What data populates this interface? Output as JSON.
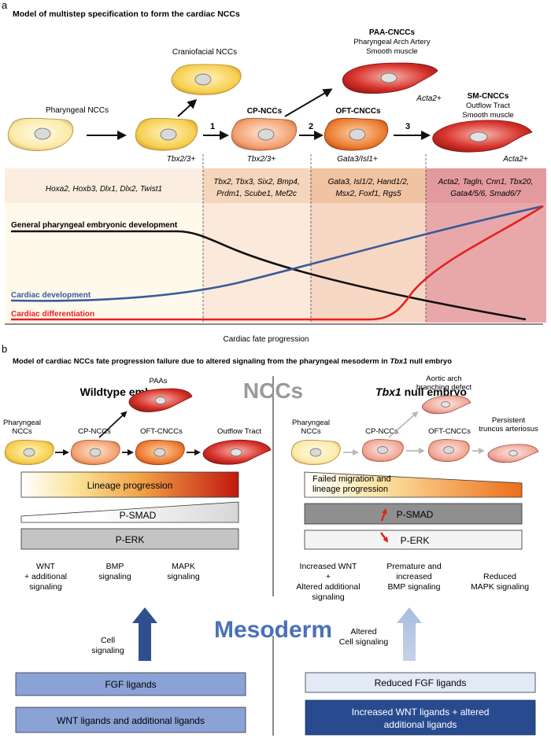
{
  "panel_a": {
    "letter": "a",
    "title": "Model of multistep specification to form the cardiac NCCs",
    "cells": {
      "pharyngeal": "Pharyngeal NCCs",
      "craniofacial": "Craniofacial NCCs",
      "cp": "CP-NCCs",
      "oft": "OFT-CNCCs",
      "paa_title": "PAA-CNCCs",
      "paa_sub1": "Pharyngeal Arch Artery",
      "paa_sub2": "Smooth muscle",
      "sm_title": "SM-CNCCs",
      "sm_sub1": "Outflow Tract",
      "sm_sub2": "Smooth muscle"
    },
    "markers": {
      "tbx_pharyngeal": "Tbx2/3+",
      "tbx_cp": "Tbx2/3+",
      "gata": "Gata3/Isl1+",
      "acta_paa": "Acta2+",
      "acta_sm": "Acta2+"
    },
    "steps": [
      "1",
      "2",
      "3"
    ],
    "genes": [
      [
        "Hoxa2, Hoxb3, Dlx1, Dlx2, Twist1"
      ],
      [
        "Tbx2, Tbx3, Six2, Bmp4,",
        "Prdm1, Scube1, Mef2c"
      ],
      [
        "Gata3, Isl1/2, Hand1/2,",
        "Msx2, Foxf1, Rgs5"
      ],
      [
        "Acta2, Tagln, Cnn1, Tbx20,",
        "Gata4/5/6, Smad6/7"
      ]
    ],
    "curves": {
      "general": "General pharyngeal embryonic development",
      "cardiac_dev": "Cardiac development",
      "cardiac_diff": "Cardiac differentiation"
    },
    "axis_label": "Cardiac fate progression",
    "colors": {
      "general": "#111111",
      "cardiac_dev": "#3a5a9b",
      "cardiac_diff": "#e8201e"
    }
  },
  "panel_b": {
    "letter": "b",
    "title_pre": "Model of cardiac NCCs fate progression failure due to altered signaling from the pharyngeal mesoderm in ",
    "title_gene": "Tbx1",
    "title_post": " null embryo",
    "nccs": "NCCs",
    "mesoderm": "Mesoderm",
    "wt": {
      "heading": "Wildtype embryo",
      "cells": {
        "pharyngeal_1": "Pharyngeal",
        "pharyngeal_2": "NCCs",
        "cp": "CP-NCCs",
        "oft": "OFT-CNCCs",
        "outflow": "Outflow Tract",
        "paas": "PAAs"
      },
      "lineage": "Lineage progression",
      "psmad": "P-SMAD",
      "perk": "P-ERK",
      "signals": [
        [
          "WNT",
          "+ additional",
          "signaling"
        ],
        [
          "BMP",
          "signaling"
        ],
        [
          "MAPK",
          "signaling"
        ]
      ],
      "cell_signaling": [
        "Cell",
        "signaling"
      ],
      "ligands": [
        "FGF ligands",
        "WNT ligands and additional ligands"
      ]
    },
    "null": {
      "heading_gene": "Tbx1",
      "heading_rest": " null embryo",
      "cells": {
        "pharyngeal_1": "Pharyngeal",
        "pharyngeal_2": "NCCs",
        "cp": "CP-NCCs",
        "oft": "OFT-CNCCs",
        "aortic_1": "Aortic arch",
        "aortic_2": "branching defect",
        "persistent_1": "Persistent",
        "persistent_2": "truncus arteriosus"
      },
      "lineage": [
        "Failed migration and",
        "lineage progression"
      ],
      "psmad": "P-SMAD",
      "perk": "P-ERK",
      "signals": [
        [
          "Increased WNT",
          "+",
          "Altered additional",
          "signaling"
        ],
        [
          "Premature and",
          "increased",
          "BMP signaling"
        ],
        [
          "Reduced",
          "MAPK signaling"
        ]
      ],
      "cell_signaling": [
        "Altered",
        "Cell signaling"
      ],
      "ligands": [
        "Reduced FGF ligands",
        "Increased WNT ligands + altered",
        "additional ligands"
      ]
    }
  }
}
